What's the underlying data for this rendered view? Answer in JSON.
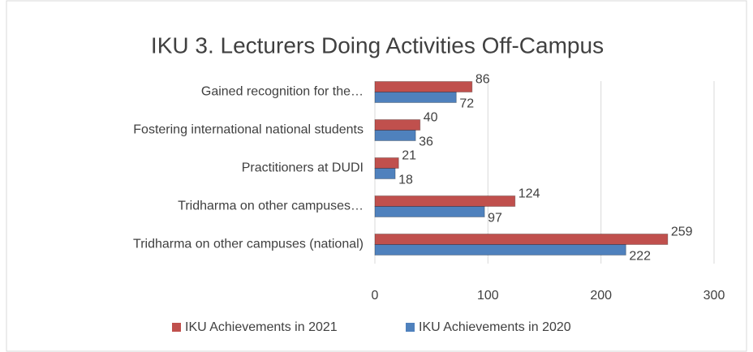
{
  "chart_data": {
    "type": "bar",
    "orientation": "horizontal",
    "title": "IKU 3. Lecturers Doing Activities Off-Campus",
    "categories": [
      "Gained recognition for the…",
      "Fostering international national students",
      "Practitioners at DUDI",
      "Tridharma on other campuses…",
      "Tridharma on other campuses (national)"
    ],
    "series": [
      {
        "name": "IKU Achievements in 2021",
        "color": "#c0504d",
        "values": [
          86,
          40,
          21,
          124,
          259
        ]
      },
      {
        "name": "IKU Achievements in 2020",
        "color": "#4f81bd",
        "values": [
          72,
          36,
          18,
          97,
          222
        ]
      }
    ],
    "xlim": [
      0,
      300
    ],
    "xticks": [
      0,
      100,
      200,
      300
    ],
    "grid": true,
    "legend": "bottom"
  }
}
